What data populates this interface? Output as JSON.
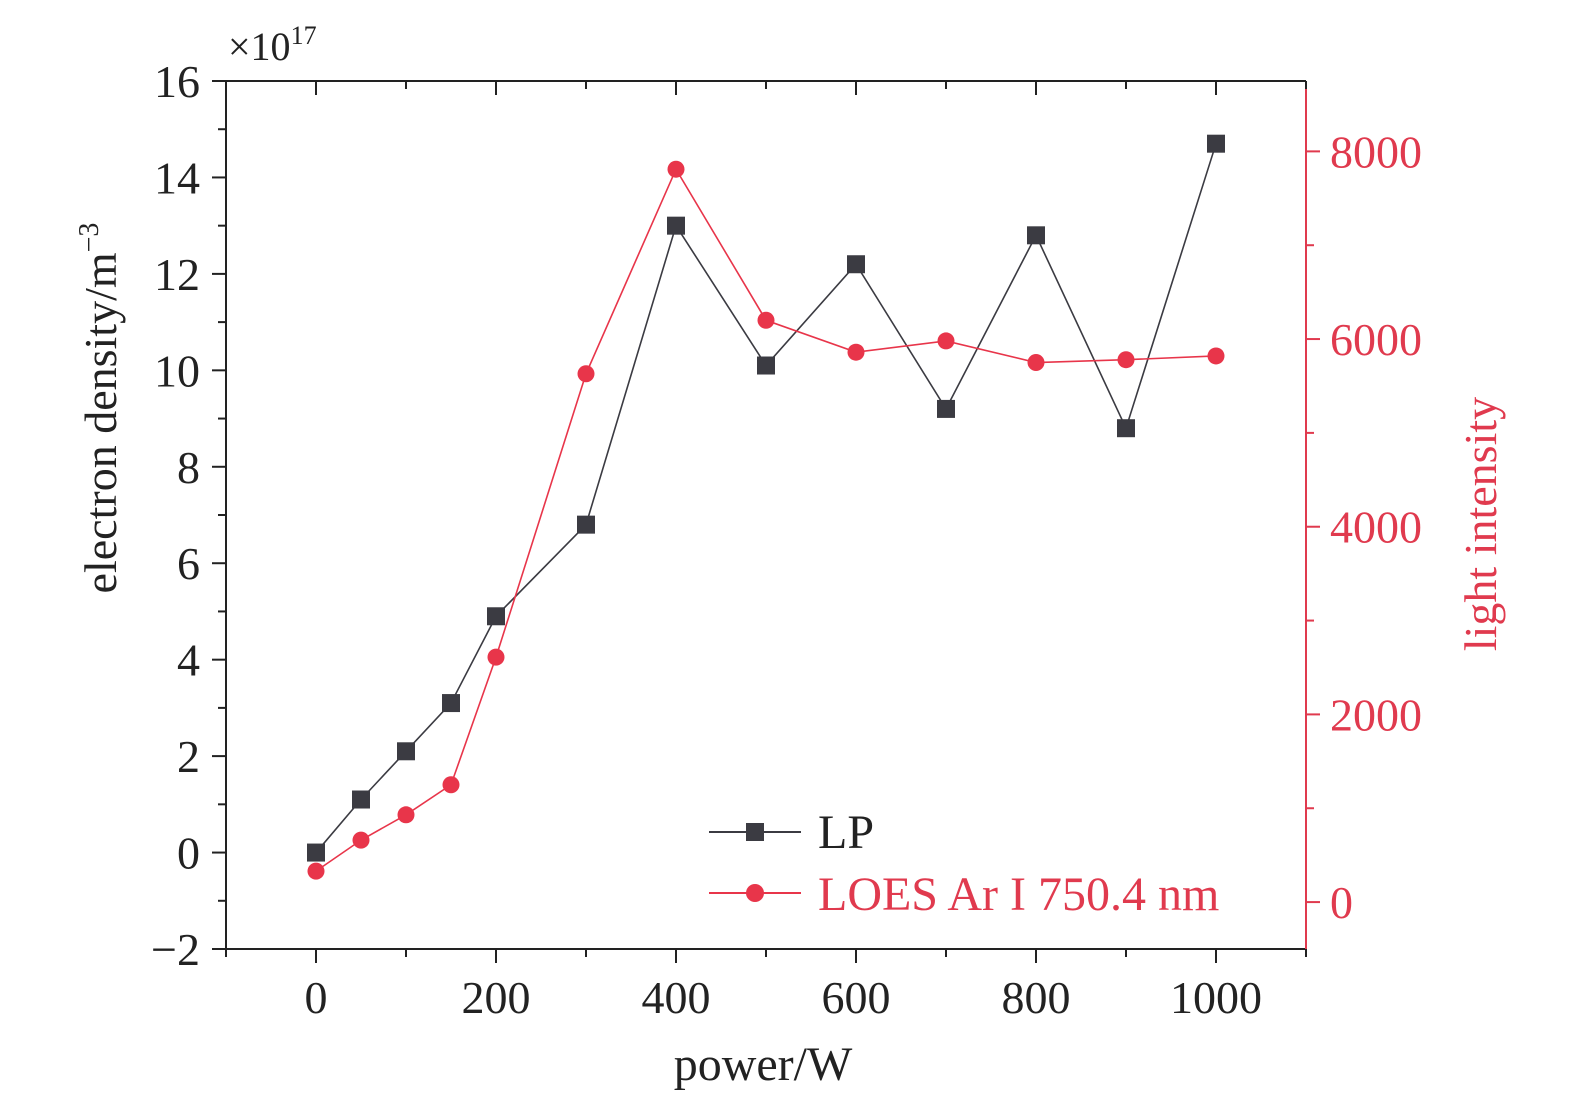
{
  "chart_data": {
    "type": "line",
    "xlabel": "power/W",
    "ylabel": "electron density/m",
    "ylabel_exponent": "−3",
    "y2label": "light intensity",
    "y_multiplier_base": "×10",
    "y_multiplier_exponent": "17",
    "xlim": [
      -100,
      1100
    ],
    "ylim": [
      -2,
      16
    ],
    "y2lim": [
      -500,
      8750
    ],
    "x_ticks": [
      0,
      200,
      400,
      600,
      800,
      1000
    ],
    "y_ticks": [
      -2,
      0,
      2,
      4,
      6,
      8,
      10,
      12,
      14,
      16
    ],
    "y2_ticks": [
      0,
      2000,
      4000,
      6000,
      8000
    ],
    "grid": false,
    "legend_position": "bottom-right",
    "colors": {
      "series_lp": "#3b3b42",
      "series_loes": "#e8354a",
      "axis": "#222222",
      "right_axis": "#e03a4e"
    },
    "series": [
      {
        "name": "LP",
        "axis": "left",
        "marker": "square",
        "x": [
          0,
          50,
          100,
          150,
          200,
          300,
          400,
          500,
          600,
          700,
          800,
          900,
          1000
        ],
        "values": [
          0.0,
          1.1,
          2.1,
          3.1,
          4.9,
          6.8,
          13.0,
          10.1,
          12.2,
          9.2,
          12.8,
          8.8,
          14.7
        ]
      },
      {
        "name": "LOES Ar I 750.4 nm",
        "axis": "right",
        "marker": "circle",
        "x": [
          0,
          50,
          100,
          150,
          200,
          300,
          400,
          500,
          600,
          700,
          800,
          900,
          1000
        ],
        "values": [
          330,
          660,
          930,
          1250,
          2610,
          5630,
          7810,
          6200,
          5860,
          5980,
          5750,
          5780,
          5820
        ]
      }
    ]
  }
}
